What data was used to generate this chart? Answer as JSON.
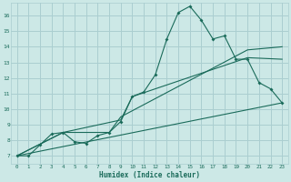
{
  "xlabel": "Humidex (Indice chaleur)",
  "bg_color": "#cce8e6",
  "grid_color": "#aaced0",
  "line_color": "#1a6b5a",
  "xlim": [
    -0.5,
    23.5
  ],
  "ylim": [
    6.5,
    16.8
  ],
  "xticks": [
    0,
    1,
    2,
    3,
    4,
    5,
    6,
    7,
    8,
    9,
    10,
    11,
    12,
    13,
    14,
    15,
    16,
    17,
    18,
    19,
    20,
    21,
    22,
    23
  ],
  "yticks": [
    7,
    8,
    9,
    10,
    11,
    12,
    13,
    14,
    15,
    16
  ],
  "line1_x": [
    0,
    1,
    2,
    3,
    4,
    5,
    6,
    7,
    8,
    9,
    10,
    11,
    12,
    13,
    14,
    15,
    16,
    17,
    18,
    19,
    20,
    21,
    22,
    23
  ],
  "line1_y": [
    7.0,
    7.0,
    7.7,
    8.4,
    8.5,
    7.9,
    7.8,
    8.3,
    8.5,
    9.2,
    10.8,
    11.1,
    12.2,
    14.5,
    16.2,
    16.6,
    15.7,
    14.5,
    14.7,
    13.2,
    13.2,
    11.7,
    11.3,
    10.4
  ],
  "line2_x": [
    0,
    23
  ],
  "line2_y": [
    7.0,
    10.4
  ],
  "line3_x": [
    0,
    4,
    9,
    10,
    20,
    23
  ],
  "line3_y": [
    7.0,
    8.5,
    9.3,
    10.8,
    13.3,
    13.2
  ],
  "line4_x": [
    0,
    4,
    8,
    9,
    20,
    23
  ],
  "line4_y": [
    7.0,
    8.5,
    8.5,
    9.5,
    13.8,
    14.0
  ]
}
